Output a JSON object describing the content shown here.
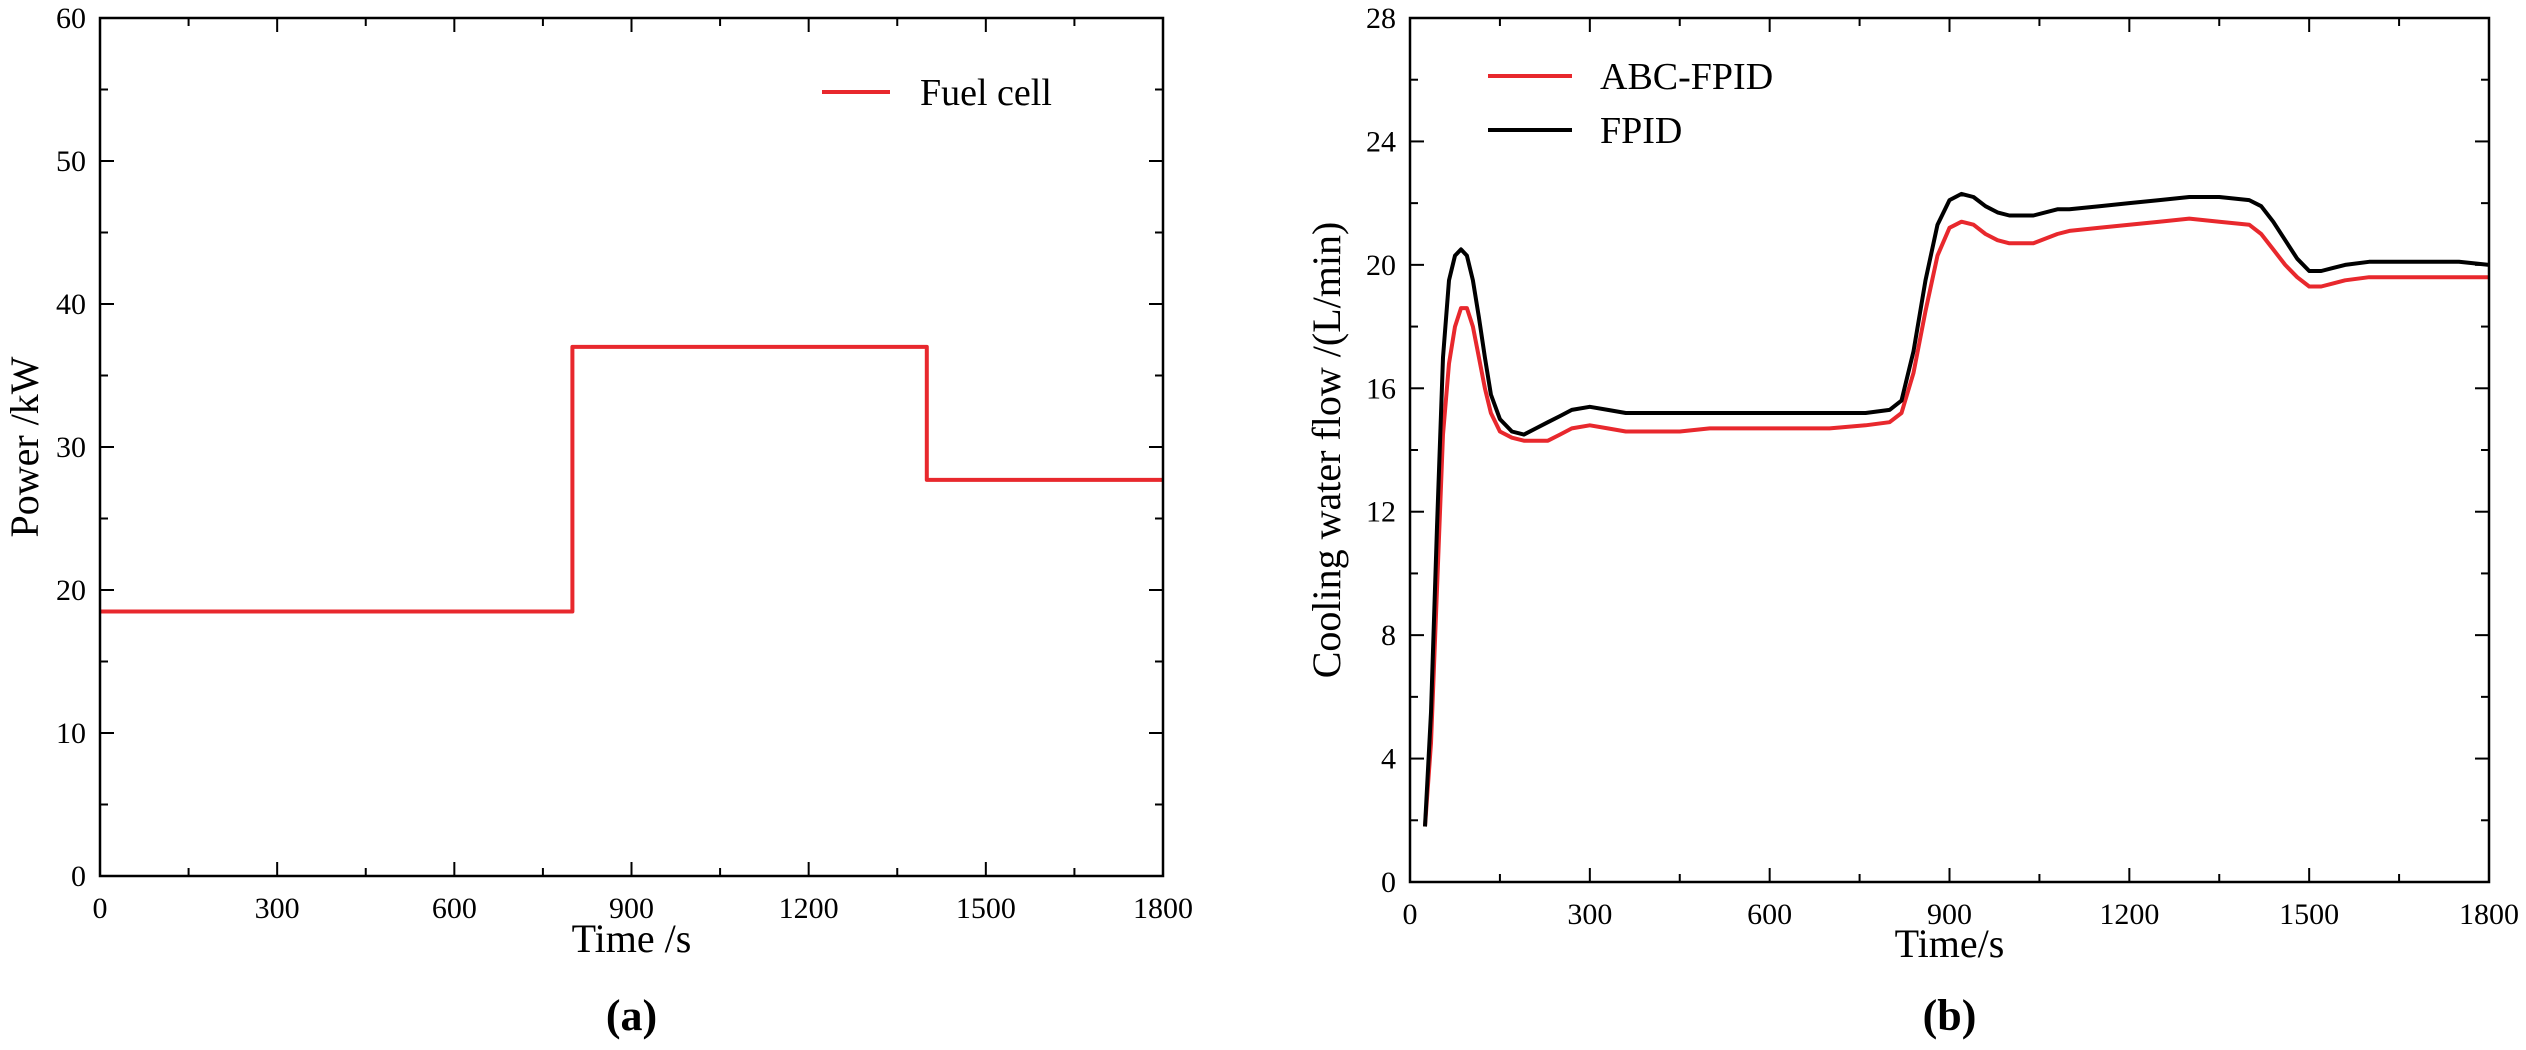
{
  "chart_data": [
    {
      "type": "line",
      "panel_label": "(a)",
      "xlabel": "Time /s",
      "ylabel": "Power /kW",
      "xlim": [
        0,
        1800
      ],
      "ylim": [
        0,
        60
      ],
      "xticks": [
        0,
        300,
        600,
        900,
        1200,
        1500,
        1800
      ],
      "yticks": [
        0,
        10,
        20,
        30,
        40,
        50,
        60
      ],
      "legend_position": "top-right",
      "series": [
        {
          "name": "Fuel cell",
          "color": "#e8282d",
          "x": [
            0,
            800,
            800,
            1400,
            1400,
            1800
          ],
          "y": [
            18.5,
            18.5,
            37.0,
            37.0,
            27.7,
            27.7
          ]
        }
      ]
    },
    {
      "type": "line",
      "panel_label": "(b)",
      "xlabel": "Time/s",
      "ylabel": "Cooling water flow /(L/min)",
      "xlim": [
        0,
        1800
      ],
      "ylim": [
        0,
        28
      ],
      "xticks": [
        0,
        300,
        600,
        900,
        1200,
        1500,
        1800
      ],
      "yticks": [
        0,
        4,
        8,
        12,
        16,
        20,
        24,
        28
      ],
      "legend_position": "top-left",
      "series": [
        {
          "name": "ABC-FPID",
          "color": "#e8282d",
          "x": [
            25,
            35,
            45,
            55,
            65,
            75,
            85,
            95,
            105,
            115,
            125,
            135,
            150,
            170,
            190,
            210,
            230,
            250,
            270,
            300,
            330,
            360,
            400,
            450,
            500,
            600,
            700,
            760,
            800,
            820,
            840,
            860,
            880,
            900,
            920,
            940,
            960,
            980,
            1000,
            1040,
            1080,
            1100,
            1150,
            1200,
            1250,
            1300,
            1350,
            1400,
            1420,
            1440,
            1460,
            1480,
            1500,
            1520,
            1540,
            1560,
            1600,
            1650,
            1700,
            1750,
            1800
          ],
          "y": [
            1.8,
            4.5,
            9.5,
            14.5,
            16.8,
            18.0,
            18.6,
            18.6,
            18.0,
            17.0,
            16.0,
            15.2,
            14.6,
            14.4,
            14.3,
            14.3,
            14.3,
            14.5,
            14.7,
            14.8,
            14.7,
            14.6,
            14.6,
            14.6,
            14.7,
            14.7,
            14.7,
            14.8,
            14.9,
            15.2,
            16.5,
            18.5,
            20.3,
            21.2,
            21.4,
            21.3,
            21.0,
            20.8,
            20.7,
            20.7,
            21.0,
            21.1,
            21.2,
            21.3,
            21.4,
            21.5,
            21.4,
            21.3,
            21.0,
            20.5,
            20.0,
            19.6,
            19.3,
            19.3,
            19.4,
            19.5,
            19.6,
            19.6,
            19.6,
            19.6,
            19.6
          ]
        },
        {
          "name": "FPID",
          "color": "#000000",
          "x": [
            25,
            35,
            45,
            55,
            65,
            75,
            85,
            95,
            105,
            115,
            125,
            135,
            150,
            170,
            190,
            210,
            230,
            250,
            270,
            300,
            330,
            360,
            400,
            450,
            500,
            600,
            700,
            760,
            800,
            820,
            840,
            860,
            880,
            900,
            920,
            940,
            960,
            980,
            1000,
            1040,
            1080,
            1100,
            1150,
            1200,
            1250,
            1300,
            1350,
            1400,
            1420,
            1440,
            1460,
            1480,
            1500,
            1520,
            1540,
            1560,
            1600,
            1650,
            1700,
            1750,
            1800
          ],
          "y": [
            1.8,
            5.5,
            11.5,
            17.0,
            19.5,
            20.3,
            20.5,
            20.3,
            19.5,
            18.3,
            17.0,
            15.8,
            15.0,
            14.6,
            14.5,
            14.7,
            14.9,
            15.1,
            15.3,
            15.4,
            15.3,
            15.2,
            15.2,
            15.2,
            15.2,
            15.2,
            15.2,
            15.2,
            15.3,
            15.6,
            17.2,
            19.5,
            21.3,
            22.1,
            22.3,
            22.2,
            21.9,
            21.7,
            21.6,
            21.6,
            21.8,
            21.8,
            21.9,
            22.0,
            22.1,
            22.2,
            22.2,
            22.1,
            21.9,
            21.4,
            20.8,
            20.2,
            19.8,
            19.8,
            19.9,
            20.0,
            20.1,
            20.1,
            20.1,
            20.1,
            20.0
          ]
        }
      ]
    }
  ]
}
